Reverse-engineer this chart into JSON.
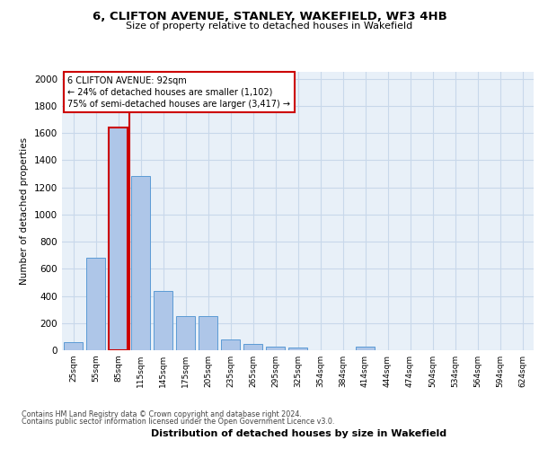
{
  "title1": "6, CLIFTON AVENUE, STANLEY, WAKEFIELD, WF3 4HB",
  "title2": "Size of property relative to detached houses in Wakefield",
  "xlabel": "Distribution of detached houses by size in Wakefield",
  "ylabel": "Number of detached properties",
  "footnote1": "Contains HM Land Registry data © Crown copyright and database right 2024.",
  "footnote2": "Contains public sector information licensed under the Open Government Licence v3.0.",
  "annotation_title": "6 CLIFTON AVENUE: 92sqm",
  "annotation_line1": "← 24% of detached houses are smaller (1,102)",
  "annotation_line2": "75% of semi-detached houses are larger (3,417) →",
  "bar_categories": [
    "25sqm",
    "55sqm",
    "85sqm",
    "115sqm",
    "145sqm",
    "175sqm",
    "205sqm",
    "235sqm",
    "265sqm",
    "295sqm",
    "325sqm",
    "354sqm",
    "384sqm",
    "414sqm",
    "444sqm",
    "474sqm",
    "504sqm",
    "534sqm",
    "564sqm",
    "594sqm",
    "624sqm"
  ],
  "bar_values": [
    60,
    680,
    1640,
    1280,
    435,
    248,
    248,
    80,
    45,
    27,
    22,
    0,
    0,
    25,
    0,
    0,
    0,
    0,
    0,
    0,
    0
  ],
  "bar_color": "#aec6e8",
  "bar_edge_color": "#5b9bd5",
  "highlight_bar_index": 2,
  "highlight_edge_color": "#cc0000",
  "vline_color": "#cc0000",
  "vline_x": 2.5,
  "ylim": [
    0,
    2050
  ],
  "yticks": [
    0,
    200,
    400,
    600,
    800,
    1000,
    1200,
    1400,
    1600,
    1800,
    2000
  ],
  "grid_color": "#c8d8ea",
  "annotation_box_edge": "#cc0000",
  "bg_color": "#ffffff",
  "axes_bg_color": "#e8f0f8"
}
